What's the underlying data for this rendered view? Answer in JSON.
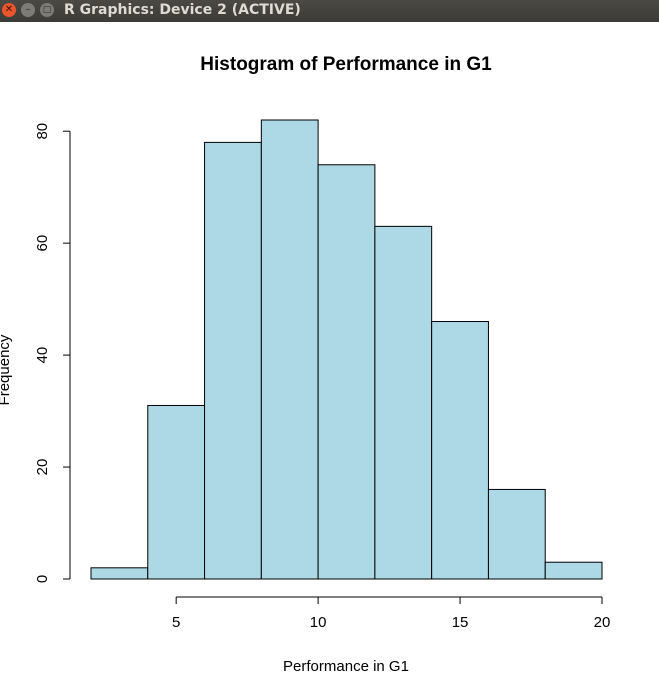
{
  "window": {
    "title": "R Graphics: Device 2 (ACTIVE)",
    "close_glyph": "✕",
    "minimize_glyph": "–",
    "maximize_glyph": "□"
  },
  "chart_data": {
    "type": "bar",
    "title": "Histogram of Performance in G1",
    "xlabel": "Performance in G1",
    "ylabel": "Frequency",
    "bin_edges": [
      2,
      4,
      6,
      8,
      10,
      12,
      14,
      16,
      18,
      20
    ],
    "values": [
      2,
      31,
      78,
      82,
      74,
      63,
      46,
      16,
      3
    ],
    "xlim": [
      2,
      20
    ],
    "ylim": [
      0,
      82
    ],
    "x_ticks": [
      5,
      10,
      15,
      20
    ],
    "y_ticks": [
      0,
      20,
      40,
      60,
      80
    ],
    "bar_fill": "#add8e6",
    "bar_stroke": "#000000",
    "grid": false,
    "legend": "none"
  }
}
